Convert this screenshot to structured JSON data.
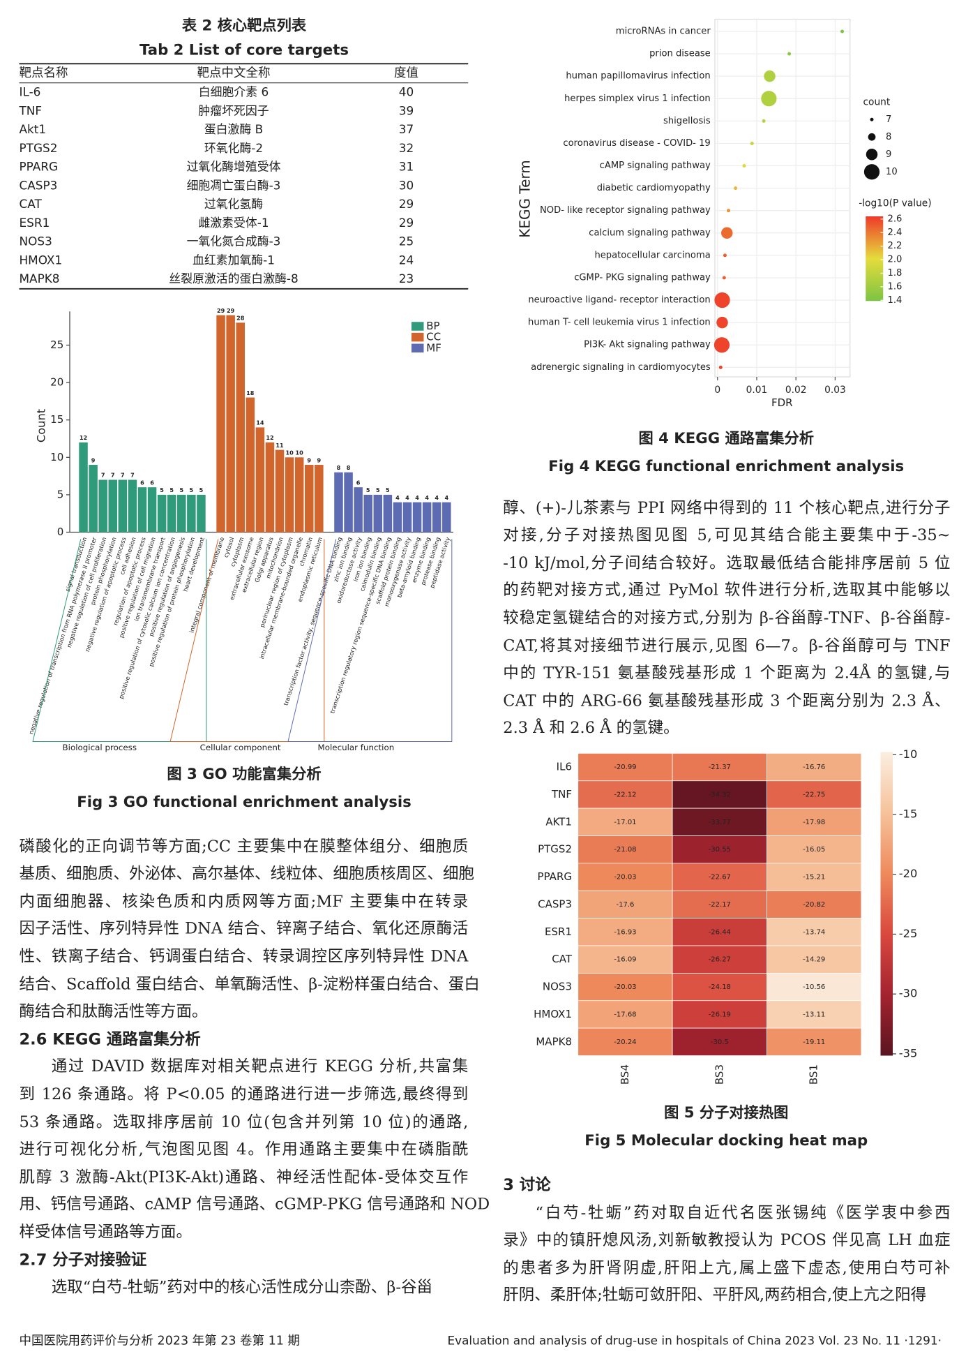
{
  "table": {
    "title_cn": "表 2 核心靶点列表",
    "title_en": "Tab 2 List of core targets",
    "headers": [
      "靶点名称",
      "靶点中文全称",
      "度值"
    ],
    "rows": [
      [
        "IL-6",
        "白细胞介素 6",
        40
      ],
      [
        "TNF",
        "肿瘤坏死因子",
        39
      ],
      [
        "Akt1",
        "蛋白激酶 B",
        37
      ],
      [
        "PTGS2",
        "环氧化酶-2",
        32
      ],
      [
        "PPARG",
        "过氧化酶增殖受体",
        31
      ],
      [
        "CASP3",
        "细胞凋亡蛋白酶-3",
        30
      ],
      [
        "CAT",
        "过氧化氢酶",
        29
      ],
      [
        "ESR1",
        "雌激素受体-1",
        29
      ],
      [
        "NOS3",
        "一氧化氮合成酶-3",
        25
      ],
      [
        "HMOX1",
        "血红素加氧酶-1",
        24
      ],
      [
        "MAPK8",
        "丝裂原激活的蛋白激酶-8",
        23
      ]
    ]
  },
  "chart_data": [
    {
      "type": "bar",
      "caption_cn": "图 3 GO 功能富集分析",
      "caption_en": "Fig 3 GO functional enrichment analysis",
      "ylabel": "Count",
      "ylim": [
        0,
        29.5
      ],
      "yticks": [
        0,
        5,
        10,
        15,
        20,
        25
      ],
      "groups": [
        {
          "name": "BP",
          "label": "Biological process",
          "color": "#2f9b7b",
          "categories": [
            "signal transduction",
            "negative regulation of transcription from RNA polymerase II promoter",
            "negative regulation of cell proliferation",
            "protein phosphorylation",
            "negative regulation of apoptotic process",
            "cell adhesion",
            "regulation of apoptotic process",
            "positive regulation of cell migration",
            "ion transmembrane transport",
            "positive regulation of cytosolic calcium ion concentration",
            "positive regulation of angiogenesis",
            "positive regulation of protein phosphorylation",
            "heart development"
          ],
          "values": [
            12,
            9,
            7,
            7,
            7,
            7,
            6,
            6,
            5,
            5,
            5,
            5,
            5
          ]
        },
        {
          "name": "CC",
          "label": "Cellular component",
          "color": "#d2652c",
          "categories": [
            "integral component of membrane",
            "cytosol",
            "cytoplasm",
            "extracellular exosome",
            "extracellular region",
            "Golgi apparatus",
            "mitochondrion",
            "perinuclear region of cytoplasm",
            "intracellular membrane-bounded organelle",
            "chromatin",
            "endoplasmic reticulum"
          ],
          "values": [
            29,
            29,
            28,
            18,
            14,
            12,
            11,
            10,
            10,
            9,
            9
          ]
        },
        {
          "name": "MF",
          "label": "Molecular function",
          "color": "#5d6bb3",
          "categories": [
            "transcription factor activity, sequence-specific DNA binding",
            "zinc ion binding",
            "oxidoreductase activity",
            "iron ion binding",
            "calmodulin binding",
            "transcription regulatory region sequence-specific DNA binding",
            "scaffold protein binding",
            "monooxygenase activity",
            "beta-amyloid binding",
            "enzyme binding",
            "protease binding",
            "peptidase activity"
          ],
          "values": [
            8,
            8,
            6,
            5,
            5,
            5,
            4,
            4,
            4,
            4,
            4,
            4
          ]
        }
      ]
    },
    {
      "type": "scatter",
      "caption_cn": "图 4 KEGG 通路富集分析",
      "caption_en": "Fig 4 KEGG functional enrichment analysis",
      "xlabel": "FDR",
      "ylabel": "KEGG Term",
      "categories": [
        "microRNAs in cancer",
        "prion disease",
        "human papillomavirus infection",
        "herpes simplex virus 1 infection",
        "shigellosis",
        "coronavirus disease - COVID- 19",
        "cAMP signaling pathway",
        "diabetic cardiomyopathy",
        "NOD- like receptor signaling pathway",
        "calcium signaling pathway",
        "hepatocellular carcinoma",
        "cGMP- PKG signaling pathway",
        "neuroactive ligand- receptor interaction",
        "human T- cell leukemia virus 1 infection",
        "PI3K- Akt signaling pathway",
        "adrenergic signaling in cardiomyocytes"
      ],
      "x": [
        0.0318,
        0.0183,
        0.0133,
        0.0131,
        0.0118,
        0.0088,
        0.0068,
        0.0046,
        0.0028,
        0.0024,
        0.0019,
        0.0017,
        0.0012,
        0.0012,
        0.0011,
        0.0008
      ],
      "size": [
        7,
        7,
        9,
        10,
        7,
        7,
        7,
        7,
        7,
        9,
        7,
        7,
        10,
        9,
        10,
        7
      ],
      "color_values": [
        1.4,
        1.5,
        1.7,
        1.7,
        1.75,
        1.85,
        1.95,
        2.15,
        2.3,
        2.45,
        2.5,
        2.5,
        2.6,
        2.6,
        2.6,
        2.6
      ],
      "xlim": [
        -0.00067,
        0.0338
      ],
      "xticks": [
        0,
        0.01,
        0.02,
        0.03
      ],
      "grid": true,
      "size_title": "count",
      "size_ticks": [
        7,
        8,
        9,
        10
      ],
      "color_title": "-log10(P value)",
      "color_lim": [
        1.39,
        2.64
      ],
      "colors": [
        "#7cc443",
        "#e5dc3c",
        "#ee3a2a"
      ],
      "color_ticks": [
        {
          "value": 2.6,
          "label": "2.6"
        },
        {
          "value": 2.4,
          "label": "2.4"
        },
        {
          "value": 2.2,
          "label": "2.2"
        },
        {
          "value": 2,
          "label": "2.0"
        },
        {
          "value": 1.8,
          "label": "1.8"
        },
        {
          "value": 1.6,
          "label": "1.6"
        },
        {
          "value": 1.4,
          "label": "1.4"
        }
      ]
    },
    {
      "type": "heatmap",
      "caption_cn": "图 5 分子对接热图",
      "caption_en": "Fig 5 Molecular docking heat map",
      "rows": [
        "IL6",
        "TNF",
        "AKT1",
        "PTGS2",
        "PPARG",
        "CASP3",
        "ESR1",
        "CAT",
        "NOS3",
        "HMOX1",
        "MAPK8"
      ],
      "columns": [
        "BS4",
        "BS3",
        "BS1"
      ],
      "values": [
        [
          -20.99,
          -21.37,
          -16.76
        ],
        [
          -22.12,
          -34.32,
          -22.75
        ],
        [
          -17.01,
          -33.77,
          -17.98
        ],
        [
          -21.08,
          -30.55,
          -16.05
        ],
        [
          -20.03,
          -22.67,
          -15.21
        ],
        [
          -17.6,
          -22.17,
          -20.82
        ],
        [
          -16.93,
          -26.44,
          -13.74
        ],
        [
          -16.09,
          -26.27,
          -14.29
        ],
        [
          -20.03,
          -24.18,
          -10.56
        ],
        [
          -17.68,
          -26.19,
          -13.11
        ],
        [
          -20.24,
          -30.5,
          -19.11
        ]
      ],
      "zlim": [
        -35.15,
        -9.78
      ],
      "zticks": [
        -10,
        -15,
        -20,
        -25,
        -30,
        -35
      ],
      "colors": [
        "#5a1420",
        "#a3232f",
        "#d9483e",
        "#ee8a5c",
        "#f6c29b",
        "#fbeee0"
      ]
    }
  ],
  "body": {
    "left": [
      {
        "lines": [
          "磷酸化的正向调节等方面;CC 主要集中在膜整体组分、细胞质",
          "基质、细胞质、外泌体、高尔基体、线粒体、细胞质核周区、细胞",
          "内面细胞器、核染色质和内质网等方面;MF 主要集中在转录",
          "因子活性、序列特异性 DNA 结合、锌离子结合、氧化还原酶活",
          "性、铁离子结合、钙调蛋白结合、转录调控区序列特异性 DNA",
          "结合、Scaffold 蛋白结合、单氧酶活性、β-淀粉样蛋白结合、蛋白",
          "酶结合和肽酶活性等方面。"
        ]
      },
      {
        "heading": "2.6 KEGG 通路富集分析"
      },
      {
        "lines": [
          "通过 DAVID 数据库对相关靶点进行 KEGG 分析,共富集",
          "到 126 条通路。将 P<0.05 的通路进行进一步筛选,最终得到",
          "53 条通路。选取排序居前 10 位(包含并列第 10 位)的通路,",
          "进行可视化分析,气泡图见图 4。作用通路主要集中在磷脂酰",
          "肌醇 3 激酶-Akt(PI3K-Akt)通路、神经活性配体-受体交互作",
          "用、钙信号通路、cAMP 信号通路、cGMP-PKG 信号通路和 NOD",
          "样受体信号通路等方面。"
        ]
      },
      {
        "heading": "2.7 分子对接验证"
      },
      {
        "lines": [
          "选取“白芍-牡蛎”药对中的核心活性成分山柰酚、β-谷甾"
        ]
      }
    ],
    "right": [
      {
        "lines": [
          "醇、(+)-儿茶素与 PPI 网络中得到的 11 个核心靶点,进行分子",
          "对接,分子对接热图见图 5,可见其结合能主要集中于-35~",
          "-10 kJ/mol,分子间结合较好。选取最低结合能排序居前 5 位",
          "的药靶对接方式,通过 PyMol 软件进行分析,选取其中能够以",
          "较稳定氢键结合的对接方式,分别为 β-谷甾醇-TNF、β-谷甾醇-",
          "CAT,将其对接细节进行展示,见图 6—7。β-谷甾醇可与 TNF",
          "中的 TYR-151 氨基酸残基形成 1 个距离为 2.4Å 的氢键,与",
          "CAT 中的 ARG-66 氨基酸残基形成 3 个距离分别为 2.3 Å、",
          "2.3 Å 和 2.6 Å 的氢键。"
        ]
      },
      {
        "heading": "3 讨论"
      },
      {
        "lines": [
          "“白芍-牡蛎”药对取自近代名医张锡纯《医学衷中参西",
          "录》中的镇肝熄风汤,刘新敏教授认为 PCOS 伴见高 LH 血症",
          "的患者多为肝肾阴虚,肝阳上亢,属上盛下虚态,使用白芍可补",
          "肝阴、柔肝体;牡蛎可敛肝阳、平肝风,两药相合,使上亢之阳得"
        ]
      }
    ]
  },
  "footer": {
    "left": "中国医院用药评价与分析 2023 年第 23 卷第 11 期",
    "right": "Evaluation and analysis of drug-use in hospitals of China 2023 Vol. 23 No. 11 ·1291·"
  }
}
